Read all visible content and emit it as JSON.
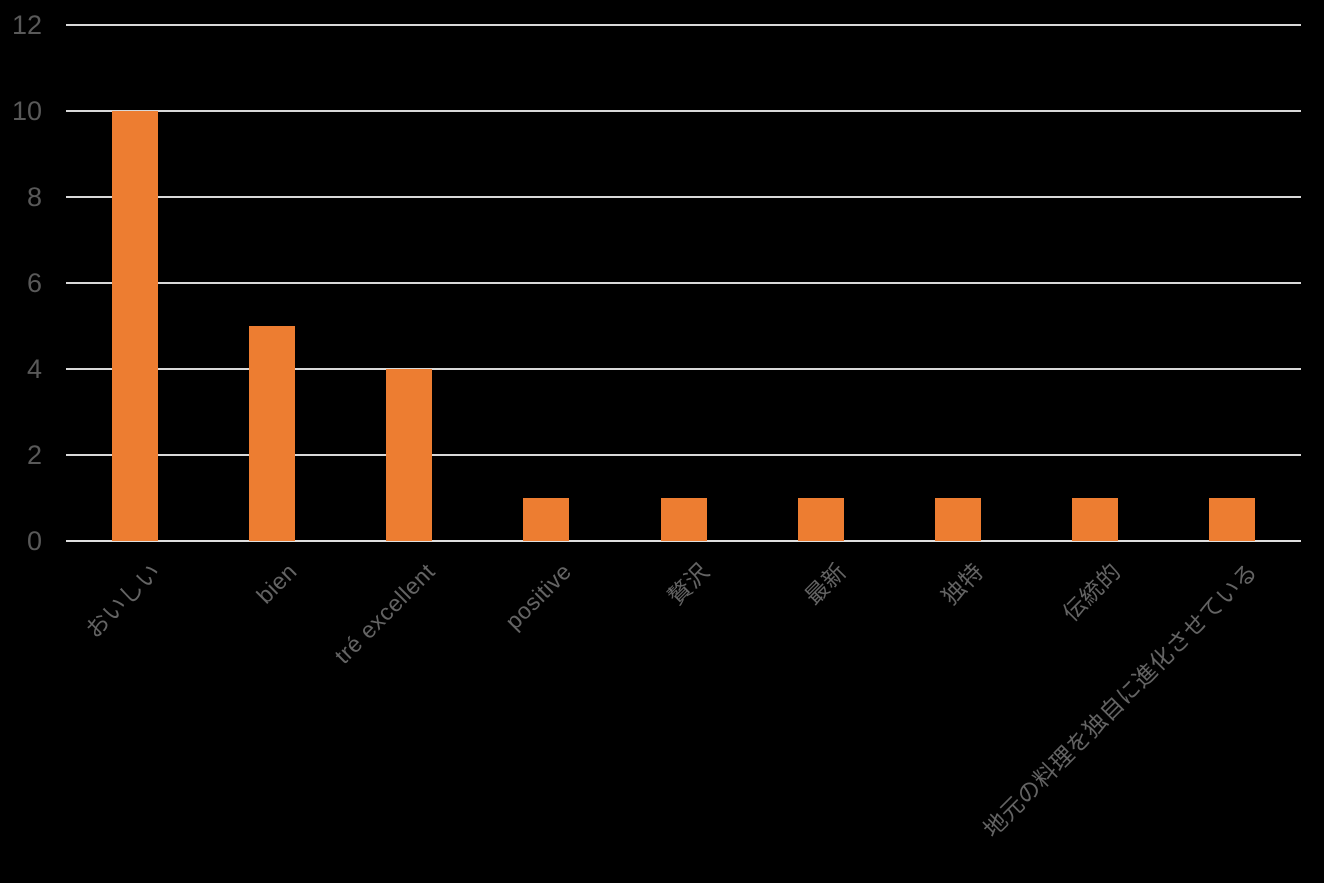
{
  "chart_data": {
    "type": "bar",
    "categories": [
      "おいしい",
      "bien",
      "tré excellent",
      "positive",
      "贅沢",
      "最新",
      "独特",
      "伝統的",
      "地元の料理を独自に進化させている"
    ],
    "values": [
      10,
      5,
      4,
      1,
      1,
      1,
      1,
      1,
      1
    ],
    "title": "",
    "xlabel": "",
    "ylabel": "",
    "ylim": [
      0,
      12
    ],
    "yticks": [
      0,
      2,
      4,
      6,
      8,
      10,
      12
    ],
    "grid": true,
    "legend": false,
    "x_tick_rotation_deg": 45,
    "bar_gap_ratio": 0.67
  },
  "colors": {
    "background": "#000000",
    "bar": "#ED7D31",
    "gridline": "#D9D9D9",
    "axis_line": "#DFDFDF",
    "tick_label": "#595959",
    "category_label": "#646464"
  }
}
